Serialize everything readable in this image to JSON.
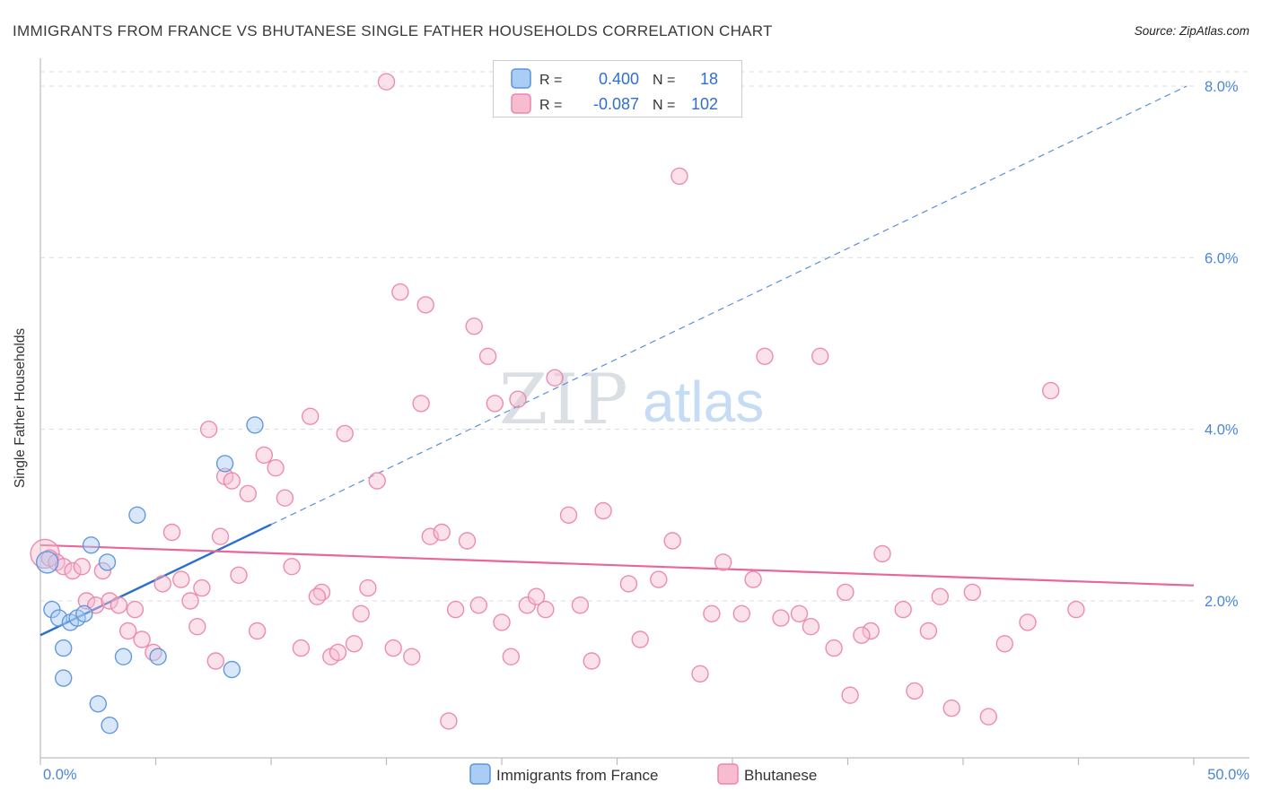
{
  "header": {
    "title": "IMMIGRANTS FROM FRANCE VS BHUTANESE SINGLE FATHER HOUSEHOLDS CORRELATION CHART",
    "source": "Source: ZipAtlas.com"
  },
  "watermark": {
    "zip": "ZIP",
    "atlas": "atlas"
  },
  "legend_box": {
    "rows": [
      {
        "r_label": "R =",
        "r_value": "0.400",
        "n_label": "N =",
        "n_value": "18"
      },
      {
        "r_label": "R =",
        "r_value": "-0.087",
        "n_label": "N =",
        "n_value": "102"
      }
    ]
  },
  "bottom_legend": {
    "items": [
      {
        "label": "Immigrants from France"
      },
      {
        "label": "Bhutanese"
      }
    ]
  },
  "colors": {
    "blue_fill": "#a9cdf4",
    "blue_stroke": "#5d94dd",
    "pink_fill": "#f7bcd0",
    "pink_stroke": "#ec86ac",
    "blue_line": "#2a6fce",
    "pink_line": "#e8669a",
    "axis_text_blue": "#4a86d8",
    "grid": "#dcdcdc"
  },
  "chart_data": {
    "type": "scatter",
    "title": "Immigrants from France vs Bhutanese Single Father Households",
    "xlabel": "",
    "ylabel": "Single Father Households",
    "x_range": [
      0,
      50
    ],
    "y_range": [
      0,
      8.36
    ],
    "x_tick_labels": {
      "min": "0.0%",
      "max": "50.0%"
    },
    "y_ticks": [
      2,
      4,
      6,
      8
    ],
    "y_tick_labels": [
      "2.0%",
      "4.0%",
      "6.0%",
      "8.0%"
    ],
    "grid": "dashed-horizontal",
    "legend_position": "bottom-center",
    "series": [
      {
        "name": "Immigrants from France",
        "R": 0.4,
        "N": 18,
        "points": [
          [
            0.3,
            2.45,
            12
          ],
          [
            0.5,
            1.9
          ],
          [
            0.8,
            1.8
          ],
          [
            1.0,
            1.45
          ],
          [
            1.3,
            1.75
          ],
          [
            1.6,
            1.8
          ],
          [
            1.9,
            1.85
          ],
          [
            2.2,
            2.65
          ],
          [
            2.9,
            2.45
          ],
          [
            1.0,
            1.1
          ],
          [
            2.5,
            0.8
          ],
          [
            3.0,
            0.55
          ],
          [
            3.6,
            1.35
          ],
          [
            4.2,
            3.0
          ],
          [
            5.1,
            1.35
          ],
          [
            8.0,
            3.6
          ],
          [
            8.3,
            1.2
          ],
          [
            9.3,
            4.05
          ]
        ]
      },
      {
        "name": "Bhutanese",
        "R": -0.087,
        "N": 102,
        "points": [
          [
            0.2,
            2.55,
            16
          ],
          [
            0.4,
            2.5
          ],
          [
            0.7,
            2.45
          ],
          [
            1.0,
            2.4
          ],
          [
            1.4,
            2.35
          ],
          [
            1.8,
            2.4
          ],
          [
            2.0,
            2.0
          ],
          [
            2.4,
            1.95
          ],
          [
            2.7,
            2.35
          ],
          [
            3.0,
            2.0
          ],
          [
            3.4,
            1.95
          ],
          [
            3.8,
            1.65
          ],
          [
            4.1,
            1.9
          ],
          [
            4.4,
            1.55
          ],
          [
            4.9,
            1.4
          ],
          [
            5.3,
            2.2
          ],
          [
            5.7,
            2.8
          ],
          [
            6.1,
            2.25
          ],
          [
            6.5,
            2.0
          ],
          [
            7.0,
            2.15
          ],
          [
            7.3,
            4.0
          ],
          [
            7.6,
            1.3
          ],
          [
            8.0,
            3.45
          ],
          [
            8.3,
            3.4
          ],
          [
            8.6,
            2.3
          ],
          [
            9.0,
            3.25
          ],
          [
            9.4,
            1.65
          ],
          [
            9.7,
            3.7
          ],
          [
            7.8,
            2.75
          ],
          [
            6.8,
            1.7
          ],
          [
            10.2,
            3.55
          ],
          [
            10.6,
            3.2
          ],
          [
            10.9,
            2.4
          ],
          [
            11.3,
            1.45
          ],
          [
            11.7,
            4.15
          ],
          [
            12.2,
            2.1
          ],
          [
            12.6,
            1.35
          ],
          [
            12.9,
            1.4
          ],
          [
            13.2,
            3.95
          ],
          [
            13.6,
            1.5
          ],
          [
            14.2,
            2.15
          ],
          [
            14.6,
            3.4
          ],
          [
            15.0,
            8.05
          ],
          [
            15.6,
            5.6
          ],
          [
            16.1,
            1.35
          ],
          [
            16.5,
            4.3
          ],
          [
            16.7,
            5.45
          ],
          [
            16.9,
            2.75
          ],
          [
            17.4,
            2.8
          ],
          [
            17.7,
            0.6
          ],
          [
            18.0,
            1.9
          ],
          [
            18.5,
            2.7
          ],
          [
            18.8,
            5.2
          ],
          [
            19.0,
            1.95
          ],
          [
            19.4,
            4.85
          ],
          [
            19.7,
            4.3
          ],
          [
            20.0,
            1.75
          ],
          [
            20.4,
            1.35
          ],
          [
            20.7,
            4.35
          ],
          [
            21.1,
            1.95
          ],
          [
            21.9,
            1.9
          ],
          [
            22.3,
            4.6
          ],
          [
            22.9,
            3.0
          ],
          [
            23.4,
            1.95
          ],
          [
            23.9,
            1.3
          ],
          [
            24.4,
            3.05
          ],
          [
            21.5,
            2.05
          ],
          [
            13.9,
            1.85
          ],
          [
            15.3,
            1.45
          ],
          [
            12.0,
            2.05
          ],
          [
            25.5,
            2.2
          ],
          [
            26.0,
            1.55
          ],
          [
            26.8,
            2.25
          ],
          [
            27.4,
            2.7
          ],
          [
            27.7,
            6.95
          ],
          [
            28.6,
            1.15
          ],
          [
            29.1,
            1.85
          ],
          [
            29.6,
            2.45
          ],
          [
            30.4,
            1.85
          ],
          [
            30.9,
            2.25
          ],
          [
            31.4,
            4.85
          ],
          [
            32.1,
            1.8
          ],
          [
            32.9,
            1.85
          ],
          [
            33.4,
            1.7
          ],
          [
            33.8,
            4.85
          ],
          [
            34.4,
            1.45
          ],
          [
            34.9,
            2.1
          ],
          [
            35.1,
            0.9
          ],
          [
            36.0,
            1.65
          ],
          [
            36.5,
            2.55
          ],
          [
            37.4,
            1.9
          ],
          [
            37.9,
            0.95
          ],
          [
            38.5,
            1.65
          ],
          [
            39.0,
            2.05
          ],
          [
            39.5,
            0.75
          ],
          [
            40.4,
            2.1
          ],
          [
            41.1,
            0.65
          ],
          [
            41.8,
            1.5
          ],
          [
            42.8,
            1.75
          ],
          [
            43.8,
            4.45
          ],
          [
            44.9,
            1.9
          ],
          [
            35.6,
            1.6
          ]
        ]
      }
    ],
    "trend_lines": [
      {
        "series": "Immigrants from France",
        "x1": 0,
        "y1": 1.6,
        "x2": 10,
        "y2": 2.89,
        "dashed": false,
        "color": "#2a6fce",
        "width": 2.4
      },
      {
        "series": "Immigrants from France extrapolated",
        "x1": 10,
        "y1": 2.89,
        "x2": 49.7,
        "y2": 8.0,
        "dashed": true,
        "color": "#5b8fd9",
        "width": 1.2
      },
      {
        "series": "Bhutanese",
        "x1": 0,
        "y1": 2.65,
        "x2": 50,
        "y2": 2.18,
        "dashed": false,
        "color": "#e8669a",
        "width": 2.2
      }
    ]
  }
}
